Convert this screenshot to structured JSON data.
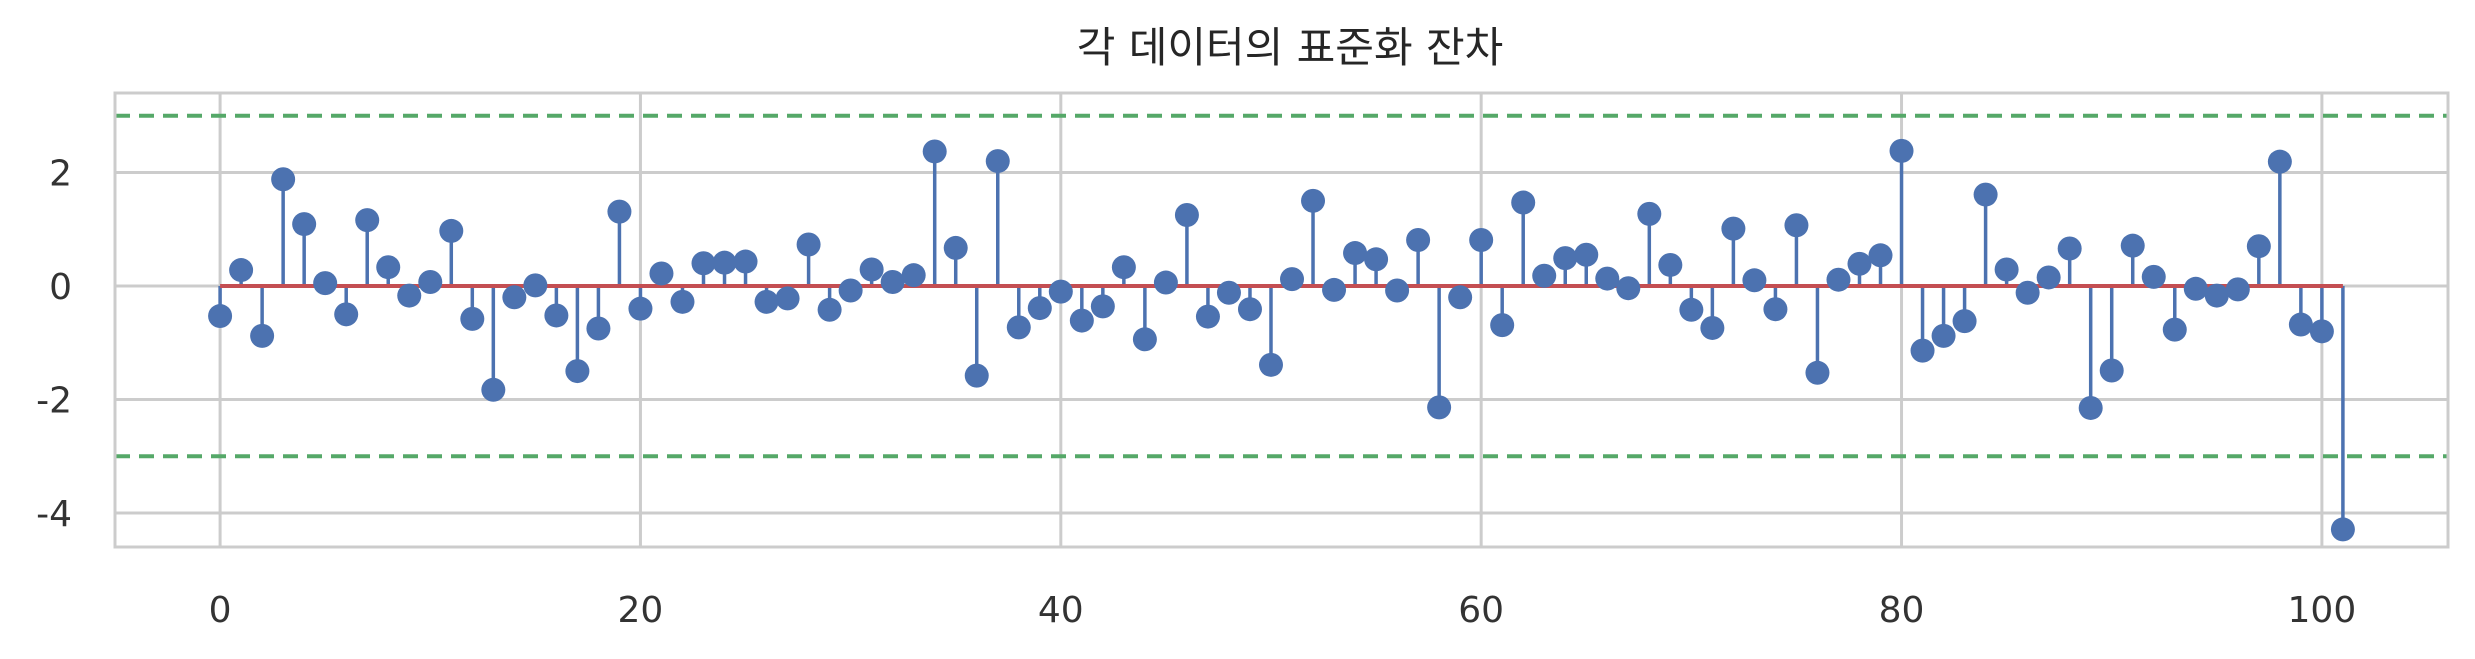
{
  "chart_data": {
    "type": "stem",
    "title": "각 데이터의 표준화 잔차",
    "xlabel": "",
    "ylabel": "",
    "xlim": [
      -5,
      106
    ],
    "ylim": [
      -4.6,
      3.4
    ],
    "xticks": [
      0,
      20,
      40,
      60,
      80,
      100
    ],
    "xtick_labels": [
      "0",
      "20",
      "40",
      "60",
      "80",
      "100"
    ],
    "yticks": [
      -4,
      -2,
      0,
      2
    ],
    "ytick_labels": [
      "-4",
      "-2",
      "0",
      "2"
    ],
    "grid": true,
    "baseline": 0,
    "reference_lines": [
      3,
      -3
    ],
    "colors": {
      "marker": "#4c72b0",
      "stem": "#4c72b0",
      "baseline": "#c44e52",
      "reference": "#55a868",
      "grid": "#cccccc"
    },
    "x": [
      0,
      1,
      2,
      3,
      4,
      5,
      6,
      7,
      8,
      9,
      10,
      11,
      12,
      13,
      14,
      15,
      16,
      17,
      18,
      19,
      20,
      21,
      22,
      23,
      24,
      25,
      26,
      27,
      28,
      29,
      30,
      31,
      32,
      33,
      34,
      35,
      36,
      37,
      38,
      39,
      40,
      41,
      42,
      43,
      44,
      45,
      46,
      47,
      48,
      49,
      50,
      51,
      52,
      53,
      54,
      55,
      56,
      57,
      58,
      59,
      60,
      61,
      62,
      63,
      64,
      65,
      66,
      67,
      68,
      69,
      70,
      71,
      72,
      73,
      74,
      75,
      76,
      77,
      78,
      79,
      80,
      81,
      82,
      83,
      84,
      85,
      86,
      87,
      88,
      89,
      90,
      91,
      92,
      93,
      94,
      95,
      96,
      97,
      98,
      99,
      100,
      101
    ],
    "values": [
      -0.53,
      0.28,
      -0.88,
      1.88,
      1.09,
      0.05,
      -0.5,
      1.16,
      0.33,
      -0.17,
      0.07,
      0.97,
      -0.58,
      -1.83,
      -0.2,
      0.01,
      -0.52,
      -1.5,
      -0.75,
      1.31,
      -0.4,
      0.22,
      -0.28,
      0.4,
      0.41,
      0.43,
      -0.28,
      -0.22,
      0.73,
      -0.42,
      -0.08,
      0.29,
      0.07,
      0.19,
      2.37,
      0.67,
      -1.58,
      2.2,
      -0.73,
      -0.39,
      -0.1,
      -0.61,
      -0.36,
      0.33,
      -0.94,
      0.06,
      1.25,
      -0.54,
      -0.12,
      -0.41,
      -1.39,
      0.12,
      1.5,
      -0.07,
      0.58,
      0.47,
      -0.08,
      0.81,
      -2.14,
      -0.2,
      0.81,
      -0.69,
      1.47,
      0.18,
      0.49,
      0.55,
      0.13,
      -0.04,
      1.27,
      0.37,
      -0.42,
      -0.74,
      1.01,
      0.1,
      -0.41,
      1.07,
      -1.53,
      0.11,
      0.39,
      0.54,
      2.38,
      -1.14,
      -0.88,
      -0.62,
      1.61,
      0.29,
      -0.12,
      0.15,
      0.66,
      -2.15,
      -1.49,
      0.71,
      0.16,
      -0.77,
      -0.05,
      -0.17,
      -0.06,
      0.7,
      2.19,
      -0.68,
      -0.8,
      -4.29
    ]
  }
}
